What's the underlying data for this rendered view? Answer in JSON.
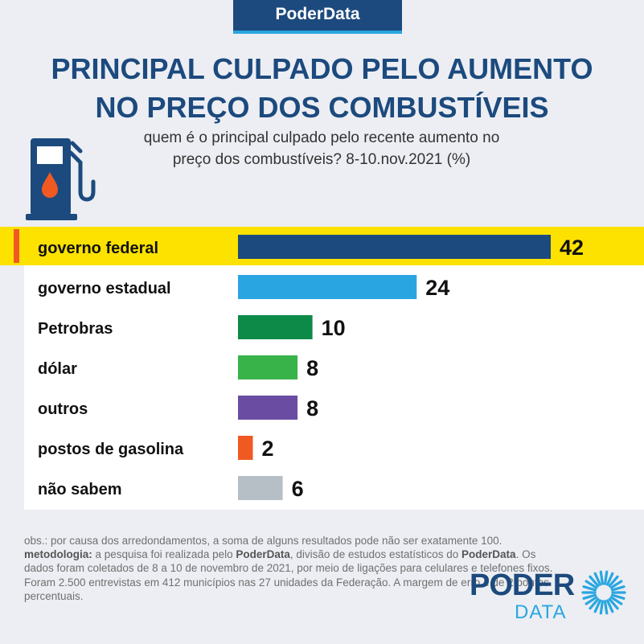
{
  "brand": "PoderData",
  "title_line1": "PRINCIPAL CULPADO PELO AUMENTO",
  "title_line2": "NO PREÇO DOS COMBUSTÍVEIS",
  "subtitle_line1": "quem é o principal culpado pelo recente aumento no",
  "subtitle_line2": "preço dos combustíveis?  8-10.nov.2021 (%)",
  "colors": {
    "navy": "#1c4a7e",
    "highlight": "#fde200",
    "marker": "#f05a22",
    "accent": "#2aa6e0"
  },
  "chart_data": {
    "type": "bar",
    "orientation": "horizontal",
    "highlighted_category": "governo federal",
    "categories": [
      "governo federal",
      "governo estadual",
      "Petrobras",
      "dólar",
      "outros",
      "postos de gasolina",
      "não sabem"
    ],
    "values": [
      42,
      24,
      10,
      8,
      8,
      2,
      6
    ],
    "bar_colors": [
      "#1c4a7e",
      "#29a5e1",
      "#0e8a48",
      "#38b34a",
      "#6a4da3",
      "#f05a22",
      "#b6bec6"
    ],
    "xlim": [
      0,
      42
    ],
    "grid": false,
    "legend": "none"
  },
  "footnote": {
    "obs": "obs.: por causa dos arredondamentos, a soma de alguns resultados pode não ser exatamente 100.",
    "metodologia_label": "metodologia:",
    "metodologia_part1": " a pesquisa foi realizada pelo ",
    "brand_bold": "PoderData",
    "metodologia_part2": ", divisão de estudos estatísticos do ",
    "metodologia_part3": ". Os dados foram coletados de 8 a 10 de novembro de 2021, por meio de ligações para celulares e telefones fixos. Foram 2.500 entrevistas em 412 municípios nas 27 unidades da Federação. A margem de erro é de 2 pontos percentuais."
  },
  "logo": {
    "word1": "PODER",
    "word2": "DATA"
  }
}
